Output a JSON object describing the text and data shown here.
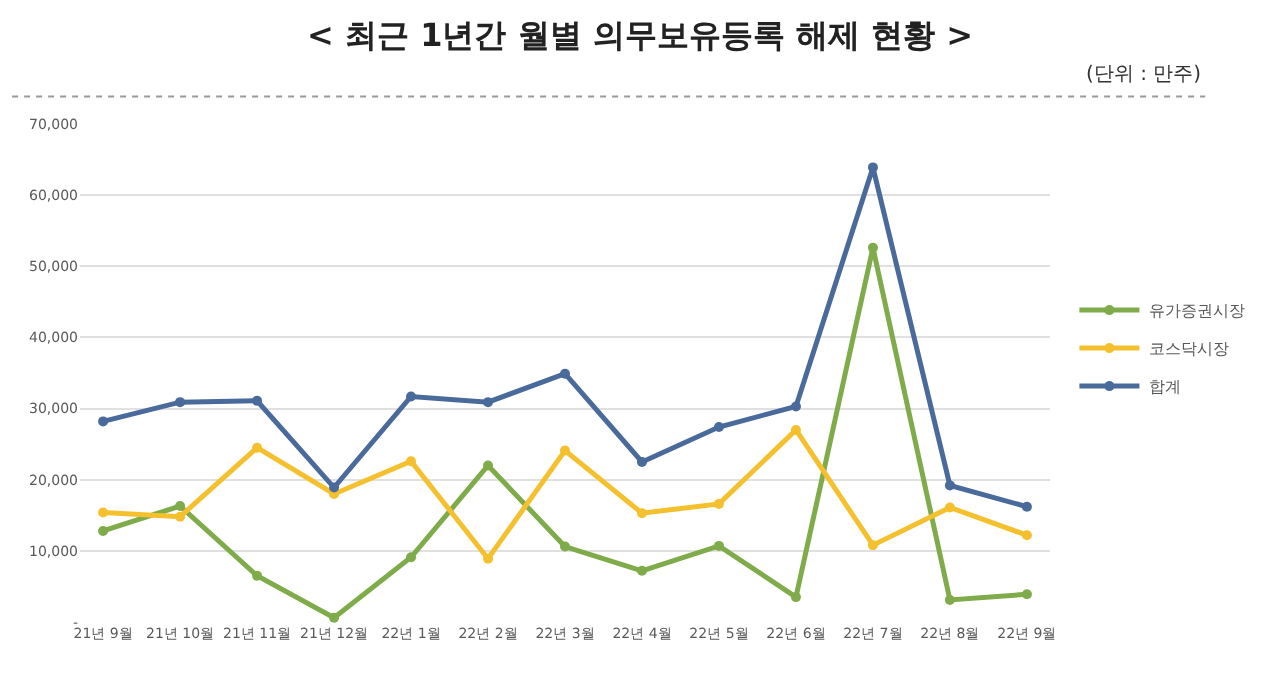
{
  "chart_data": {
    "type": "line",
    "title": "< 최근 1년간 월별 의무보유등록 해제 현황 >",
    "annotations": [
      "(단위 : 만주)"
    ],
    "categories": [
      "21년 9월",
      "21년 10월",
      "21년 11월",
      "21년 12월",
      "22년 1월",
      "22년 2월",
      "22년 3월",
      "22년 4월",
      "22년 5월",
      "22년 6월",
      "22년 7월",
      "22년 8월",
      "22년 9월"
    ],
    "series": [
      {
        "name": "유가증권시장",
        "color": "#7fab4a",
        "values": [
          12800,
          16300,
          6500,
          600,
          9100,
          22000,
          10600,
          7200,
          10700,
          3500,
          52600,
          3100,
          3900
        ]
      },
      {
        "name": "코스닥시장",
        "color": "#f5c02e",
        "values": [
          15400,
          14800,
          24500,
          18000,
          22600,
          8900,
          24100,
          15300,
          16600,
          27000,
          10800,
          16100,
          12200
        ]
      },
      {
        "name": "합계",
        "color": "#4a6a9c",
        "values": [
          28200,
          30900,
          31100,
          18900,
          31700,
          30900,
          34900,
          22500,
          27400,
          30300,
          63900,
          19200,
          16200
        ]
      }
    ],
    "ylim": [
      0,
      70000
    ],
    "yticks": [
      {
        "value": 0,
        "label": "-"
      },
      {
        "value": 10000,
        "label": "10,000"
      },
      {
        "value": 20000,
        "label": "20,000"
      },
      {
        "value": 30000,
        "label": "30,000"
      },
      {
        "value": 40000,
        "label": "40,000"
      },
      {
        "value": 50000,
        "label": "50,000"
      },
      {
        "value": 60000,
        "label": "60,000"
      },
      {
        "value": 70000,
        "label": "70,000"
      }
    ],
    "grid": "y",
    "legend": "right",
    "marker": "circle",
    "line_style": "solid"
  }
}
